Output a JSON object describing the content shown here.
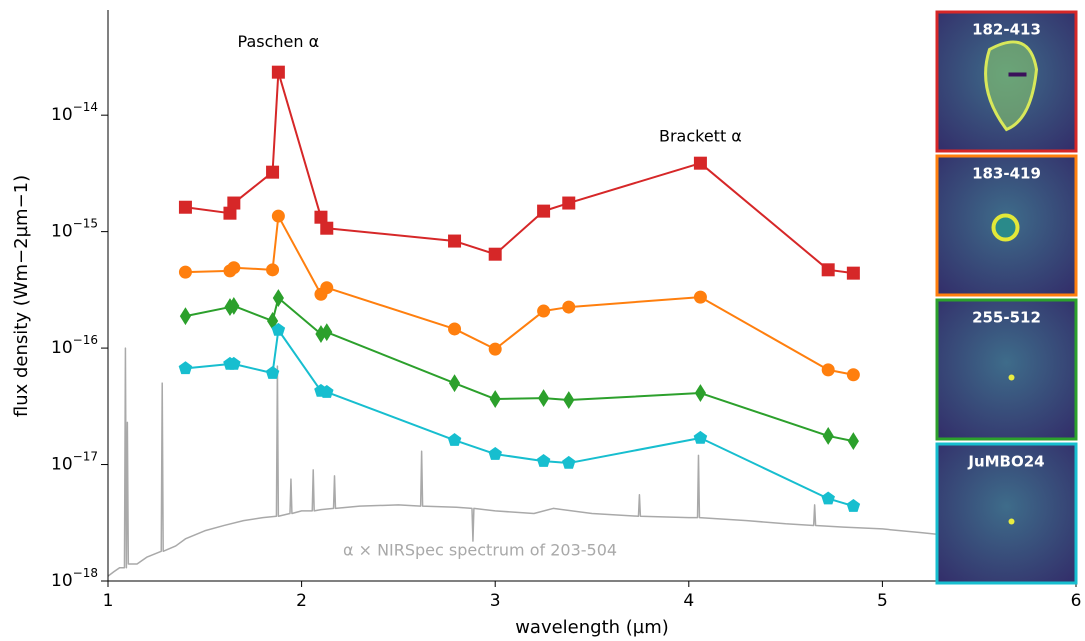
{
  "chart_data": {
    "type": "line",
    "log_y": true,
    "legend": "thumbnails",
    "xlabel": "wavelength (µm)",
    "ylabel": "flux density (Wm−2µm−1)",
    "xlim": [
      1,
      6
    ],
    "xticks": [
      1,
      2,
      3,
      4,
      5,
      6
    ],
    "ylim": [
      1e-18,
      8e-14
    ],
    "yticks": [
      {
        "value": 1e-18,
        "label": "10−18"
      },
      {
        "value": 1e-17,
        "label": "10−17"
      },
      {
        "value": 1e-16,
        "label": "10−16"
      },
      {
        "value": 1e-15,
        "label": "10−15"
      },
      {
        "value": 1e-14,
        "label": "10−14"
      }
    ],
    "annotations": [
      {
        "text": "Paschen α",
        "x": 1.88,
        "y": 4.2e-14
      },
      {
        "text": "Brackett α",
        "x": 4.06,
        "y": 6.5e-15
      }
    ],
    "x": [
      1.4,
      1.63,
      1.65,
      1.85,
      1.88,
      2.1,
      2.13,
      2.79,
      3.0,
      3.25,
      3.38,
      4.06,
      4.72,
      4.85
    ],
    "series": [
      {
        "name": "182-413",
        "color": "#d62728",
        "marker": "square",
        "values": [
          1.62e-15,
          1.44e-15,
          1.76e-15,
          3.24e-15,
          2.34e-14,
          1.33e-15,
          1.07e-15,
          8.3e-16,
          6.4e-16,
          1.5e-15,
          1.76e-15,
          3.87e-15,
          4.7e-16,
          4.4e-16
        ]
      },
      {
        "name": "183-419",
        "color": "#ff7f0e",
        "marker": "circle",
        "values": [
          4.49e-16,
          4.6e-16,
          4.9e-16,
          4.7e-16,
          1.36e-15,
          2.9e-16,
          3.3e-16,
          1.46e-16,
          9.8e-17,
          2.08e-16,
          2.25e-16,
          2.74e-16,
          6.5e-17,
          5.9e-17
        ]
      },
      {
        "name": "255-512",
        "color": "#2ca02c",
        "marker": "diamond",
        "values": [
          1.88e-16,
          2.25e-16,
          2.3e-16,
          1.71e-16,
          2.69e-16,
          1.32e-16,
          1.37e-16,
          5e-17,
          3.65e-17,
          3.72e-17,
          3.58e-17,
          4.11e-17,
          1.76e-17,
          1.59e-17
        ]
      },
      {
        "name": "JuMBO24",
        "color": "#17becf",
        "marker": "pentagon",
        "values": [
          6.7e-17,
          7.3e-17,
          7.3e-17,
          6.1e-17,
          1.43e-16,
          4.28e-17,
          4.19e-17,
          1.62e-17,
          1.23e-17,
          1.07e-17,
          1.03e-17,
          1.69e-17,
          5.1e-18,
          4.4e-18
        ]
      },
      {
        "name": "α × NIRSpec spectrum of 203-504",
        "color": "#a9a9a9",
        "marker": "none",
        "x": [
          1.0,
          1.03,
          1.06,
          1.085,
          1.09,
          1.095,
          1.1,
          1.105,
          1.15,
          1.2,
          1.275,
          1.28,
          1.285,
          1.35,
          1.4,
          1.5,
          1.6,
          1.7,
          1.8,
          1.87,
          1.875,
          1.88,
          1.94,
          1.945,
          1.95,
          2.0,
          2.055,
          2.06,
          2.065,
          2.1,
          2.165,
          2.17,
          2.175,
          2.3,
          2.5,
          2.615,
          2.62,
          2.625,
          2.8,
          2.88,
          2.885,
          2.89,
          3.0,
          3.2,
          3.3,
          3.5,
          3.74,
          3.745,
          3.75,
          4.0,
          4.045,
          4.05,
          4.055,
          4.3,
          4.5,
          4.645,
          4.65,
          4.655,
          4.8,
          5.0,
          5.2,
          5.3
        ],
        "values": [
          1.1e-18,
          1.2e-18,
          1.3e-18,
          1.3e-18,
          1e-16,
          1.3e-18,
          2.3e-17,
          1.4e-18,
          1.4e-18,
          1.6e-18,
          1.8e-18,
          5e-17,
          1.8e-18,
          2e-18,
          2.3e-18,
          2.7e-18,
          3e-18,
          3.3e-18,
          3.5e-18,
          3.6e-18,
          7e-17,
          3.6e-18,
          3.8e-18,
          7.5e-18,
          3.8e-18,
          4e-18,
          4e-18,
          9e-18,
          4e-18,
          4.1e-18,
          4.2e-18,
          8e-18,
          4.2e-18,
          4.4e-18,
          4.5e-18,
          4.4e-18,
          1.3e-17,
          4.4e-18,
          4.3e-18,
          4.2e-18,
          2.2e-18,
          4.2e-18,
          4e-18,
          3.8e-18,
          4.2e-18,
          3.8e-18,
          3.6e-18,
          5.5e-18,
          3.6e-18,
          3.5e-18,
          3.5e-18,
          1.2e-17,
          3.5e-18,
          3.3e-18,
          3.1e-18,
          3e-18,
          4.5e-18,
          3e-18,
          2.9e-18,
          2.8e-18,
          2.6e-18,
          2.5e-18
        ]
      }
    ]
  }
}
